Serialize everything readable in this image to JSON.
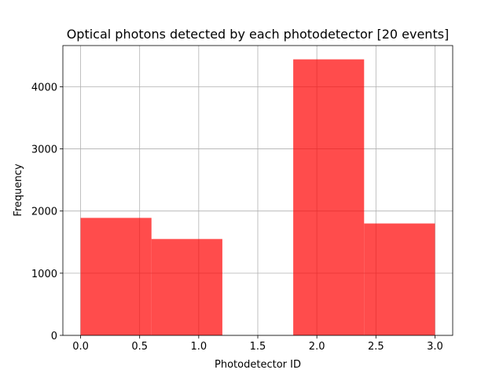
{
  "chart_data": {
    "type": "bar",
    "title": "Optical photons detected by each photodetector [20 events]",
    "xlabel": "Photodetector ID",
    "ylabel": "Frequency",
    "bins": [
      {
        "x0": 0.0,
        "x1": 0.6,
        "value": 1890
      },
      {
        "x0": 0.6,
        "x1": 1.2,
        "value": 1550
      },
      {
        "x0": 1.2,
        "x1": 1.8,
        "value": 0
      },
      {
        "x0": 1.8,
        "x1": 2.4,
        "value": 4440
      },
      {
        "x0": 2.4,
        "x1": 3.0,
        "value": 1800
      }
    ],
    "xlim": [
      -0.15,
      3.15
    ],
    "ylim": [
      0,
      4662
    ],
    "xticks": [
      0.0,
      0.5,
      1.0,
      1.5,
      2.0,
      2.5,
      3.0
    ],
    "xtick_labels": [
      "0.0",
      "0.5",
      "1.0",
      "1.5",
      "2.0",
      "2.5",
      "3.0"
    ],
    "yticks": [
      0,
      1000,
      2000,
      3000,
      4000
    ],
    "ytick_labels": [
      "0",
      "1000",
      "2000",
      "3000",
      "4000"
    ],
    "grid": true,
    "bar_color": "#ff0000",
    "bar_alpha": 0.7
  }
}
